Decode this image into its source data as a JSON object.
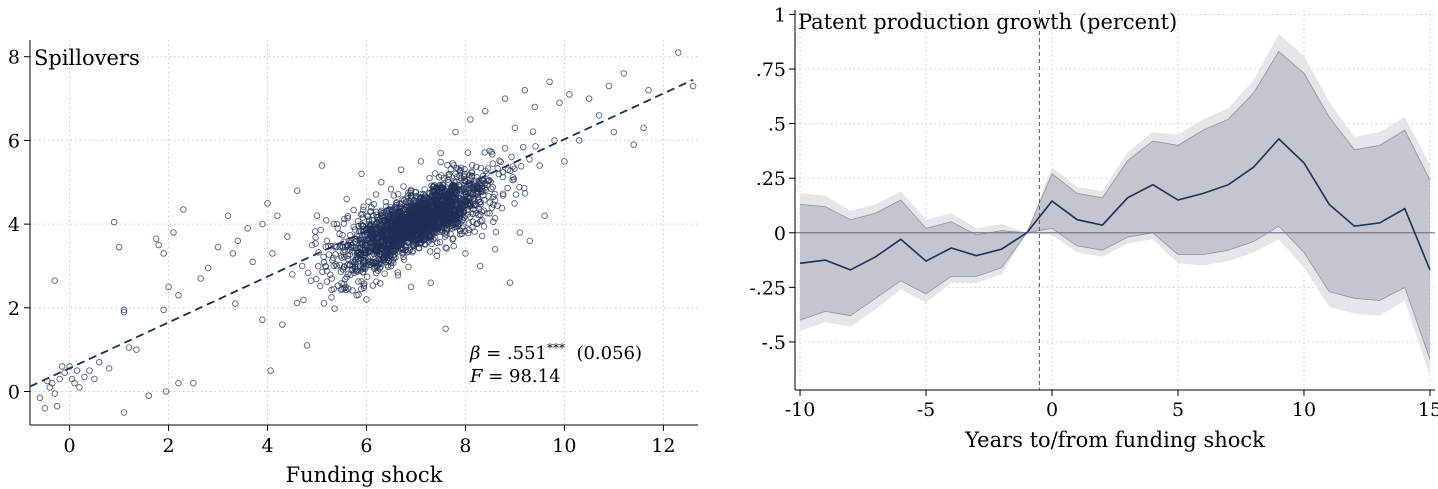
{
  "chart_data": [
    {
      "type": "scatter",
      "title": "Spillovers",
      "xlabel": "Funding shock",
      "ylabel": "",
      "xlim": [
        -0.8,
        12.7
      ],
      "ylim": [
        -0.8,
        8.4
      ],
      "xticks": [
        0,
        2,
        4,
        6,
        8,
        10,
        12
      ],
      "yticks": [
        0,
        2,
        4,
        6,
        8
      ],
      "grid": true,
      "marker_color": "#1f2f55",
      "fit_line": {
        "x": [
          -0.8,
          12.6
        ],
        "y": [
          0.12,
          7.45
        ],
        "style": "dashed",
        "color": "#1f2f55"
      },
      "annotation": {
        "beta_label": "β = .551",
        "stars": "***",
        "se": "(0.056)",
        "f_label": "F = 98.14"
      },
      "points": [
        [
          -0.6,
          -0.15
        ],
        [
          -0.5,
          -0.4
        ],
        [
          -0.4,
          0.1
        ],
        [
          -0.35,
          0.2
        ],
        [
          -0.3,
          -0.05
        ],
        [
          -0.2,
          0.3
        ],
        [
          -0.15,
          0.6
        ],
        [
          -0.1,
          0.45
        ],
        [
          0.0,
          0.6
        ],
        [
          0.05,
          0.3
        ],
        [
          0.1,
          0.2
        ],
        [
          0.15,
          0.5
        ],
        [
          0.2,
          0.1
        ],
        [
          0.3,
          0.35
        ],
        [
          0.4,
          0.5
        ],
        [
          0.5,
          0.3
        ],
        [
          0.6,
          0.7
        ],
        [
          0.8,
          0.55
        ],
        [
          -0.25,
          -0.35
        ],
        [
          -0.45,
          0.25
        ],
        [
          -0.3,
          2.65
        ],
        [
          0.9,
          4.05
        ],
        [
          1.0,
          3.45
        ],
        [
          1.1,
          1.95
        ],
        [
          1.1,
          1.9
        ],
        [
          1.1,
          -0.5
        ],
        [
          1.2,
          1.05
        ],
        [
          1.35,
          1.0
        ],
        [
          1.6,
          -0.1
        ],
        [
          1.75,
          3.65
        ],
        [
          1.8,
          3.5
        ],
        [
          1.9,
          3.3
        ],
        [
          1.9,
          1.95
        ],
        [
          1.95,
          0.0
        ],
        [
          2.0,
          2.5
        ],
        [
          2.1,
          3.8
        ],
        [
          2.2,
          0.2
        ],
        [
          2.2,
          2.3
        ],
        [
          2.3,
          4.35
        ],
        [
          2.5,
          0.2
        ],
        [
          2.65,
          2.7
        ],
        [
          2.8,
          2.95
        ],
        [
          3.0,
          3.45
        ],
        [
          3.2,
          4.2
        ],
        [
          3.3,
          3.3
        ],
        [
          3.35,
          2.1
        ],
        [
          3.4,
          3.6
        ],
        [
          3.6,
          3.9
        ],
        [
          3.7,
          3.1
        ],
        [
          3.9,
          4.0
        ],
        [
          4.0,
          4.5
        ],
        [
          4.1,
          3.3
        ],
        [
          4.2,
          4.2
        ],
        [
          4.3,
          1.6
        ],
        [
          4.4,
          3.7
        ],
        [
          4.5,
          2.8
        ],
        [
          4.6,
          4.8
        ],
        [
          4.7,
          3.0
        ],
        [
          4.8,
          1.1
        ],
        [
          4.9,
          3.5
        ],
        [
          5.0,
          4.2
        ],
        [
          5.1,
          5.4
        ],
        [
          5.2,
          3.6
        ],
        [
          5.3,
          2.7
        ],
        [
          5.4,
          4.0
        ],
        [
          5.5,
          3.2
        ],
        [
          5.6,
          4.6
        ],
        [
          5.7,
          3.5
        ],
        [
          5.8,
          2.3
        ],
        [
          5.9,
          5.2
        ],
        [
          6.0,
          2.2
        ],
        [
          6.1,
          4.4
        ],
        [
          6.3,
          5.0
        ],
        [
          6.5,
          3.0
        ],
        [
          6.7,
          5.3
        ],
        [
          6.9,
          2.5
        ],
        [
          7.1,
          5.5
        ],
        [
          7.3,
          2.6
        ],
        [
          7.5,
          5.7
        ],
        [
          7.6,
          1.5
        ],
        [
          7.8,
          6.2
        ],
        [
          8.0,
          3.3
        ],
        [
          8.1,
          6.5
        ],
        [
          8.3,
          3.0
        ],
        [
          8.4,
          6.7
        ],
        [
          8.6,
          3.4
        ],
        [
          8.8,
          7.0
        ],
        [
          8.9,
          2.6
        ],
        [
          9.0,
          6.3
        ],
        [
          9.1,
          3.8
        ],
        [
          9.2,
          7.2
        ],
        [
          9.3,
          3.6
        ],
        [
          9.4,
          6.8
        ],
        [
          9.5,
          5.4
        ],
        [
          9.6,
          4.2
        ],
        [
          9.7,
          7.4
        ],
        [
          9.8,
          6.0
        ],
        [
          9.9,
          6.9
        ],
        [
          10.0,
          5.5
        ],
        [
          10.1,
          7.1
        ],
        [
          10.3,
          6.0
        ],
        [
          10.5,
          7.0
        ],
        [
          10.7,
          6.6
        ],
        [
          10.9,
          7.3
        ],
        [
          11.0,
          6.2
        ],
        [
          11.2,
          7.6
        ],
        [
          11.4,
          5.9
        ],
        [
          11.6,
          6.3
        ],
        [
          11.7,
          7.2
        ],
        [
          12.3,
          8.1
        ],
        [
          12.6,
          7.3
        ]
      ],
      "cluster": {
        "center": [
          7.0,
          4.05
        ],
        "spread_x": 0.75,
        "slope": 0.55,
        "spread_y": 0.35,
        "n": 2200
      }
    },
    {
      "type": "area",
      "title": "Patent production growth (percent)",
      "xlabel": "Years to/from funding shock",
      "ylabel": "",
      "xlim": [
        -10.2,
        15.2
      ],
      "ylim": [
        -0.72,
        1.02
      ],
      "xticks": [
        -10,
        -5,
        0,
        5,
        10,
        15
      ],
      "yticks": [
        -0.5,
        -0.25,
        0,
        0.25,
        0.5,
        0.75,
        1
      ],
      "ytick_labels": [
        "-.5",
        "-.25",
        "0",
        ".25",
        ".5",
        ".75",
        "1"
      ],
      "grid": true,
      "event_line_x": -0.5,
      "x": [
        -10,
        -9,
        -8,
        -7,
        -6,
        -5,
        -4,
        -3,
        -2,
        -1,
        0,
        1,
        2,
        3,
        4,
        5,
        6,
        7,
        8,
        9,
        10,
        11,
        12,
        13,
        14,
        15
      ],
      "series": [
        {
          "values": [
            -0.14,
            -0.125,
            -0.17,
            -0.11,
            -0.03,
            -0.13,
            -0.07,
            -0.105,
            -0.075,
            0.0,
            0.145,
            0.06,
            0.035,
            0.16,
            0.22,
            0.15,
            0.18,
            0.22,
            0.3,
            0.43,
            0.32,
            0.13,
            0.03,
            0.045,
            0.11,
            -0.17
          ],
          "color": "#1f2f55"
        }
      ],
      "ci_inner_upper": [
        0.13,
        0.12,
        0.06,
        0.09,
        0.15,
        0.02,
        0.05,
        -0.01,
        0.01,
        0.0,
        0.27,
        0.18,
        0.16,
        0.33,
        0.42,
        0.4,
        0.47,
        0.52,
        0.64,
        0.83,
        0.73,
        0.53,
        0.38,
        0.4,
        0.47,
        0.24
      ],
      "ci_inner_lower": [
        -0.4,
        -0.36,
        -0.38,
        -0.3,
        -0.22,
        -0.28,
        -0.2,
        -0.2,
        -0.16,
        0.0,
        0.02,
        -0.06,
        -0.08,
        -0.02,
        0.0,
        -0.1,
        -0.1,
        -0.08,
        -0.04,
        0.03,
        -0.09,
        -0.27,
        -0.3,
        -0.31,
        -0.25,
        -0.58
      ],
      "ci_outer_upper": [
        0.18,
        0.17,
        0.1,
        0.13,
        0.19,
        0.06,
        0.09,
        0.02,
        0.04,
        0.0,
        0.3,
        0.21,
        0.19,
        0.37,
        0.46,
        0.45,
        0.52,
        0.57,
        0.7,
        0.91,
        0.81,
        0.6,
        0.44,
        0.46,
        0.53,
        0.31
      ],
      "ci_outer_lower": [
        -0.45,
        -0.41,
        -0.43,
        -0.35,
        -0.26,
        -0.32,
        -0.23,
        -0.23,
        -0.19,
        0.0,
        -0.01,
        -0.09,
        -0.11,
        -0.05,
        -0.03,
        -0.14,
        -0.15,
        -0.13,
        -0.09,
        -0.03,
        -0.16,
        -0.34,
        -0.37,
        -0.38,
        -0.31,
        -0.66
      ],
      "ci_inner_color": "#c4c6cf",
      "ci_outer_color": "#e6e6e8",
      "ci_edge_color": "#8d92a3"
    }
  ]
}
